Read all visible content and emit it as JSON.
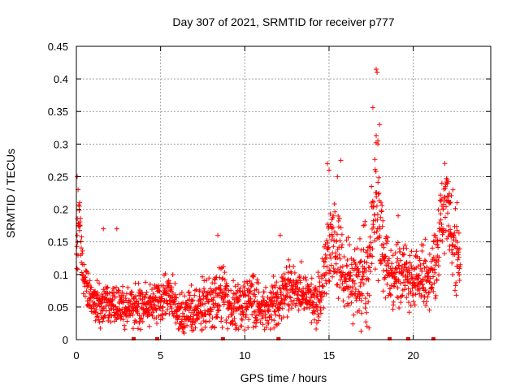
{
  "chart_data": {
    "type": "scatter",
    "title": "Day 307 of 2021, SRMTID for receiver p777",
    "xlabel": "GPS time / hours",
    "ylabel": "SRMTID / TECUs",
    "xlim": [
      0,
      24.6
    ],
    "ylim": [
      0,
      0.45
    ],
    "x_ticks": [
      0,
      5,
      10,
      15,
      20
    ],
    "x_tick_labels": [
      "0",
      "5",
      "10",
      "15",
      "20"
    ],
    "y_ticks": [
      0,
      0.05,
      0.1,
      0.15,
      0.2,
      0.25,
      0.3,
      0.35,
      0.4,
      0.45
    ],
    "y_tick_labels": [
      "0",
      "0.05",
      "0.1",
      "0.15",
      "0.2",
      "0.25",
      "0.3",
      "0.35",
      "0.4",
      "0.45"
    ],
    "grid": true,
    "marker": "+",
    "series": [
      {
        "name": "SRMTID",
        "color": "#ff0000",
        "trend": [
          [
            0.0,
            0.12
          ],
          [
            0.15,
            0.2
          ],
          [
            0.4,
            0.1
          ],
          [
            0.8,
            0.07
          ],
          [
            1.2,
            0.05
          ],
          [
            2.0,
            0.055
          ],
          [
            3.0,
            0.05
          ],
          [
            4.0,
            0.055
          ],
          [
            5.0,
            0.06
          ],
          [
            5.5,
            0.07
          ],
          [
            6.2,
            0.04
          ],
          [
            7.0,
            0.04
          ],
          [
            8.0,
            0.055
          ],
          [
            8.6,
            0.075
          ],
          [
            9.2,
            0.05
          ],
          [
            10.0,
            0.06
          ],
          [
            11.0,
            0.05
          ],
          [
            12.0,
            0.055
          ],
          [
            12.5,
            0.08
          ],
          [
            13.5,
            0.07
          ],
          [
            14.3,
            0.055
          ],
          [
            14.8,
            0.1
          ],
          [
            15.2,
            0.16
          ],
          [
            15.6,
            0.13
          ],
          [
            16.0,
            0.09
          ],
          [
            16.8,
            0.1
          ],
          [
            17.3,
            0.09
          ],
          [
            17.8,
            0.23
          ],
          [
            18.2,
            0.13
          ],
          [
            18.6,
            0.09
          ],
          [
            19.2,
            0.1
          ],
          [
            19.8,
            0.09
          ],
          [
            20.5,
            0.1
          ],
          [
            21.0,
            0.09
          ],
          [
            21.6,
            0.17
          ],
          [
            22.0,
            0.2
          ],
          [
            22.5,
            0.14
          ],
          [
            22.8,
            0.13
          ]
        ],
        "spread": [
          [
            0.0,
            0.03
          ],
          [
            1.0,
            0.02
          ],
          [
            5.0,
            0.022
          ],
          [
            8.5,
            0.03
          ],
          [
            12.5,
            0.025
          ],
          [
            14.5,
            0.025
          ],
          [
            15.2,
            0.05
          ],
          [
            16.5,
            0.035
          ],
          [
            17.8,
            0.07
          ],
          [
            18.5,
            0.035
          ],
          [
            20.5,
            0.03
          ],
          [
            21.8,
            0.045
          ],
          [
            22.8,
            0.04
          ]
        ],
        "outliers": [
          [
            0.05,
            0.25
          ],
          [
            0.1,
            0.23
          ],
          [
            0.2,
            0.21
          ],
          [
            2.4,
            0.17
          ],
          [
            1.6,
            0.17
          ],
          [
            8.4,
            0.16
          ],
          [
            12.1,
            0.16
          ],
          [
            14.9,
            0.27
          ],
          [
            15.0,
            0.26
          ],
          [
            15.7,
            0.275
          ],
          [
            15.5,
            0.25
          ],
          [
            17.6,
            0.356
          ],
          [
            17.85,
            0.41
          ],
          [
            17.8,
            0.415
          ],
          [
            17.8,
            0.313
          ],
          [
            18.0,
            0.33
          ],
          [
            17.9,
            0.3
          ],
          [
            17.9,
            0.305
          ],
          [
            16.9,
            0.013
          ],
          [
            21.7,
            0.24
          ],
          [
            19.1,
            0.19
          ],
          [
            22.6,
            0.21
          ],
          [
            19.6,
            0.14
          ],
          [
            6.4,
            0.01
          ],
          [
            21.9,
            0.232
          ],
          [
            22.1,
            0.22
          ]
        ],
        "gap_markers_x": [
          3.4,
          4.8,
          8.7,
          12.0,
          18.6,
          19.7,
          21.2
        ]
      }
    ]
  }
}
